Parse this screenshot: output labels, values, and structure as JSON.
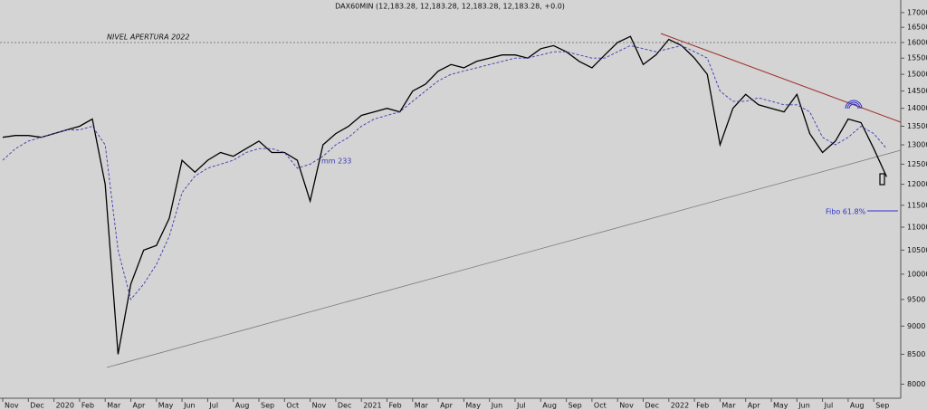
{
  "chart_data": {
    "type": "line",
    "title": "DAX60MIN (12,183.28, 12,183.28, 12,183.28, 12,183.28, +0.0)",
    "categories": [
      "Nov",
      null,
      "Dec",
      null,
      "2020",
      null,
      "Feb",
      null,
      "Mar",
      null,
      "Apr",
      null,
      "May",
      null,
      "Jun",
      null,
      "Jul",
      null,
      "Aug",
      null,
      "Sep",
      null,
      "Oct",
      null,
      "Nov",
      null,
      "Dec",
      null,
      "2021",
      null,
      "Feb",
      null,
      "Mar",
      null,
      "Apr",
      null,
      "May",
      null,
      "Jun",
      null,
      "Jul",
      null,
      "Aug",
      null,
      "Sep",
      null,
      "Oct",
      null,
      "Nov",
      null,
      "Dec",
      null,
      "2022",
      null,
      "Feb",
      null,
      "Mar",
      null,
      "Apr",
      null,
      "May",
      null,
      "Jun",
      null,
      "Jul",
      null,
      "Aug",
      null,
      "Sep",
      null
    ],
    "series": [
      {
        "color": "#000000",
        "values": [
          13200,
          13250,
          13250,
          13200,
          13300,
          13400,
          13500,
          13700,
          12000,
          8500,
          9800,
          10500,
          10600,
          11200,
          12600,
          12300,
          12600,
          12800,
          12700,
          12900,
          13100,
          12800,
          12800,
          12600,
          11600,
          13000,
          13300,
          13500,
          13800,
          13900,
          14000,
          13900,
          14500,
          14700,
          15100,
          15300,
          15200,
          15400,
          15500,
          15600,
          15600,
          15500,
          15800,
          15900,
          15700,
          15400,
          15200,
          15600,
          16000,
          16200,
          15300,
          15600,
          16100,
          15900,
          15500,
          15000,
          13000,
          14000,
          14400,
          14100,
          14000,
          13900,
          14400,
          13300,
          12800,
          13100,
          13700,
          13600,
          12900,
          12183.28
        ]
      },
      {
        "name": "mm 233",
        "color": "#3a3ab4",
        "dash": true,
        "values": [
          12600,
          12900,
          13100,
          13200,
          13300,
          13400,
          13400,
          13500,
          13000,
          10500,
          9500,
          9800,
          10200,
          10800,
          11800,
          12200,
          12400,
          12500,
          12600,
          12800,
          12900,
          12900,
          12800,
          12400,
          12500,
          12700,
          13000,
          13200,
          13500,
          13700,
          13800,
          13900,
          14200,
          14500,
          14800,
          15000,
          15100,
          15200,
          15300,
          15400,
          15500,
          15500,
          15600,
          15700,
          15700,
          15600,
          15500,
          15500,
          15700,
          15900,
          15800,
          15700,
          15800,
          15900,
          15700,
          15500,
          14500,
          14200,
          14200,
          14300,
          14200,
          14100,
          14100,
          13900,
          13200,
          13000,
          13200,
          13500,
          13300,
          12900
        ]
      }
    ],
    "log_scale": true,
    "ylim": [
      7775,
      17440
    ],
    "yticks": [
      8000,
      8500,
      9000,
      9500,
      10000,
      10500,
      11000,
      11500,
      12000,
      12500,
      13000,
      13500,
      14000,
      14500,
      15000,
      15500,
      16000,
      16500,
      17000
    ],
    "annotations": [
      {
        "text": "NIVEL APERTURA 2022"
      },
      {
        "text": "Fibo 61.8%"
      }
    ]
  }
}
